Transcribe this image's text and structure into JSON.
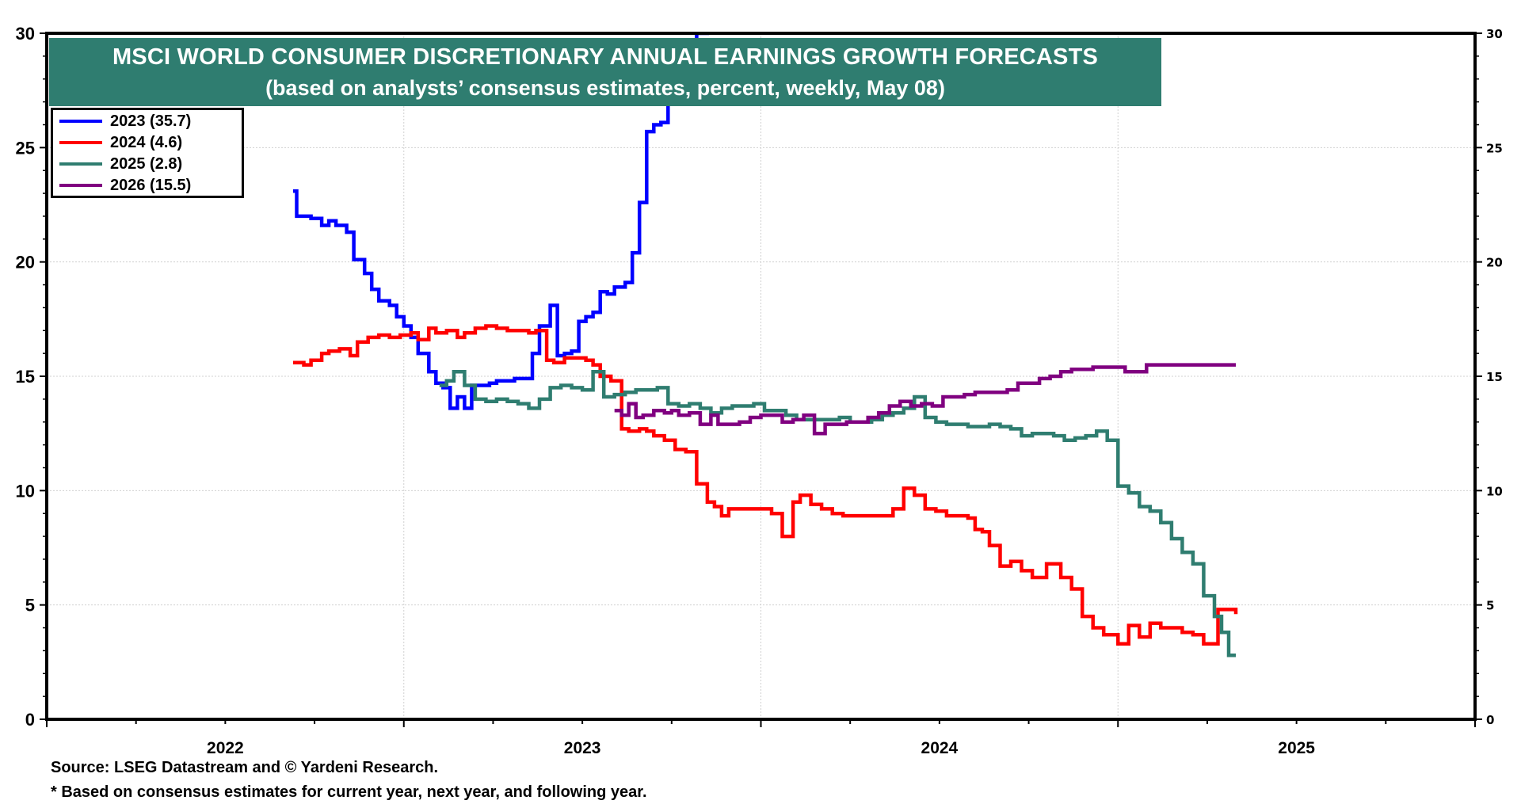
{
  "chart_data": {
    "type": "line",
    "title": "MSCI WORLD CONSUMER DISCRETIONARY ANNUAL EARNINGS GROWTH FORECASTS",
    "subtitle": "(based on analysts’ consensus estimates, percent, weekly, May 08)",
    "xlabel": "",
    "ylabel": "",
    "xlim": [
      2022.0,
      2026.0
    ],
    "ylim": [
      0,
      30
    ],
    "x_tick_labels": [
      "2022",
      "2023",
      "2024",
      "2025"
    ],
    "y_ticks_left": [
      "0",
      "5",
      "10",
      "15",
      "20",
      "25",
      "30"
    ],
    "y_ticks_right": [
      "0",
      "5",
      "10",
      "15",
      "20",
      "25",
      "30"
    ],
    "grid": true,
    "legend_position": "top-left",
    "series": [
      {
        "name": "2023 (35.7)",
        "color": "#0000ff",
        "step": true,
        "x": [
          2022.69,
          2022.7,
          2022.74,
          2022.77,
          2022.79,
          2022.81,
          2022.84,
          2022.86,
          2022.89,
          2022.91,
          2022.93,
          2022.96,
          2022.98,
          2023.0,
          2023.02,
          2023.04,
          2023.07,
          2023.09,
          2023.11,
          2023.13,
          2023.15,
          2023.17,
          2023.19,
          2023.22,
          2023.24,
          2023.26,
          2023.29,
          2023.31,
          2023.33,
          2023.36,
          2023.38,
          2023.41,
          2023.43,
          2023.45,
          2023.47,
          2023.49,
          2023.51,
          2023.53,
          2023.55,
          2023.57,
          2023.59,
          2023.62,
          2023.64,
          2023.66,
          2023.68,
          2023.7,
          2023.72,
          2023.74,
          2023.76,
          2023.78,
          2023.8,
          2023.82,
          2023.85
        ],
        "values": [
          23.1,
          22.0,
          21.9,
          21.6,
          21.8,
          21.6,
          21.3,
          20.1,
          19.5,
          18.8,
          18.3,
          18.1,
          17.6,
          17.2,
          16.7,
          16.0,
          15.2,
          14.7,
          14.5,
          13.6,
          14.1,
          13.6,
          14.6,
          14.6,
          14.7,
          14.8,
          14.8,
          14.9,
          14.9,
          16.0,
          17.2,
          18.1,
          15.9,
          16.0,
          16.1,
          17.4,
          17.6,
          17.8,
          18.7,
          18.6,
          18.9,
          19.1,
          20.4,
          22.6,
          25.7,
          26.0,
          26.1,
          27.3,
          28.4,
          29.3,
          29.7,
          30.0,
          35.7
        ]
      },
      {
        "name": "2024 (4.6)",
        "color": "#ff0000",
        "step": true,
        "x": [
          2022.69,
          2022.72,
          2022.74,
          2022.77,
          2022.79,
          2022.82,
          2022.85,
          2022.87,
          2022.9,
          2022.93,
          2022.96,
          2022.99,
          2023.02,
          2023.04,
          2023.07,
          2023.09,
          2023.12,
          2023.15,
          2023.17,
          2023.2,
          2023.23,
          2023.26,
          2023.29,
          2023.32,
          2023.35,
          2023.37,
          2023.4,
          2023.42,
          2023.45,
          2023.48,
          2023.51,
          2023.53,
          2023.55,
          2023.58,
          2023.61,
          2023.63,
          2023.66,
          2023.68,
          2023.7,
          2023.73,
          2023.76,
          2023.79,
          2023.82,
          2023.85,
          2023.87,
          2023.89,
          2023.91,
          2023.94,
          2023.97,
          2024.0,
          2024.03,
          2024.06,
          2024.09,
          2024.11,
          2024.14,
          2024.17,
          2024.2,
          2024.23,
          2024.25,
          2024.28,
          2024.31,
          2024.34,
          2024.37,
          2024.4,
          2024.43,
          2024.46,
          2024.49,
          2024.52,
          2024.55,
          2024.58,
          2024.6,
          2024.62,
          2024.64,
          2024.67,
          2024.7,
          2024.73,
          2024.76,
          2024.8,
          2024.84,
          2024.87,
          2024.9,
          2024.93,
          2024.96,
          2025.0,
          2025.03,
          2025.06,
          2025.09,
          2025.12,
          2025.15,
          2025.18,
          2025.21,
          2025.24,
          2025.28,
          2025.3,
          2025.33
        ],
        "values": [
          15.6,
          15.5,
          15.7,
          16.0,
          16.1,
          16.2,
          15.9,
          16.5,
          16.7,
          16.8,
          16.7,
          16.8,
          16.9,
          16.6,
          17.1,
          16.9,
          17.0,
          16.7,
          16.9,
          17.1,
          17.2,
          17.1,
          17.0,
          17.0,
          16.9,
          17.0,
          15.7,
          15.6,
          15.8,
          15.8,
          15.7,
          15.5,
          15.0,
          14.8,
          12.7,
          12.6,
          12.7,
          12.6,
          12.4,
          12.2,
          11.8,
          11.7,
          10.3,
          9.5,
          9.3,
          8.9,
          9.2,
          9.2,
          9.2,
          9.2,
          9.0,
          8.0,
          9.5,
          9.8,
          9.4,
          9.2,
          9.0,
          8.9,
          8.9,
          8.9,
          8.9,
          8.9,
          9.2,
          10.1,
          9.8,
          9.2,
          9.1,
          8.9,
          8.9,
          8.8,
          8.3,
          8.2,
          7.6,
          6.7,
          6.9,
          6.5,
          6.2,
          6.8,
          6.2,
          5.7,
          4.5,
          4.0,
          3.7,
          3.3,
          4.1,
          3.6,
          4.2,
          4.0,
          4.0,
          3.8,
          3.7,
          3.3,
          4.8,
          4.8,
          4.6
        ]
      },
      {
        "name": "2025 (2.8)",
        "color": "#2f7d70",
        "step": true,
        "x": [
          2023.1,
          2023.12,
          2023.14,
          2023.17,
          2023.2,
          2023.23,
          2023.26,
          2023.29,
          2023.32,
          2023.35,
          2023.38,
          2023.41,
          2023.44,
          2023.47,
          2023.5,
          2023.53,
          2023.56,
          2023.59,
          2023.62,
          2023.65,
          2023.68,
          2023.71,
          2023.74,
          2023.77,
          2023.8,
          2023.83,
          2023.86,
          2023.89,
          2023.92,
          2023.95,
          2023.98,
          2024.01,
          2024.04,
          2024.07,
          2024.1,
          2024.13,
          2024.16,
          2024.19,
          2024.22,
          2024.25,
          2024.28,
          2024.31,
          2024.34,
          2024.37,
          2024.4,
          2024.43,
          2024.46,
          2024.49,
          2024.52,
          2024.55,
          2024.58,
          2024.61,
          2024.64,
          2024.67,
          2024.7,
          2024.73,
          2024.76,
          2024.79,
          2024.82,
          2024.85,
          2024.88,
          2024.91,
          2024.94,
          2024.97,
          2025.0,
          2025.03,
          2025.06,
          2025.09,
          2025.12,
          2025.15,
          2025.18,
          2025.21,
          2025.24,
          2025.27,
          2025.29,
          2025.31,
          2025.33
        ],
        "values": [
          14.6,
          14.8,
          15.2,
          14.6,
          14.0,
          13.9,
          14.0,
          13.9,
          13.8,
          13.6,
          14.0,
          14.5,
          14.6,
          14.5,
          14.4,
          15.2,
          14.1,
          14.2,
          14.3,
          14.4,
          14.4,
          14.5,
          13.8,
          13.7,
          13.8,
          13.6,
          13.4,
          13.6,
          13.7,
          13.7,
          13.8,
          13.5,
          13.5,
          13.3,
          13.1,
          13.1,
          13.1,
          13.1,
          13.2,
          13.0,
          13.0,
          13.1,
          13.3,
          13.4,
          13.6,
          14.1,
          13.2,
          13.0,
          12.9,
          12.9,
          12.8,
          12.8,
          12.9,
          12.8,
          12.7,
          12.4,
          12.5,
          12.5,
          12.4,
          12.2,
          12.3,
          12.4,
          12.6,
          12.2,
          10.2,
          9.9,
          9.3,
          9.1,
          8.6,
          7.9,
          7.3,
          6.8,
          5.4,
          4.5,
          3.8,
          2.8,
          2.8
        ]
      },
      {
        "name": "2026 (15.5)",
        "color": "#800080",
        "step": true,
        "x": [
          2023.59,
          2023.61,
          2023.63,
          2023.65,
          2023.67,
          2023.7,
          2023.73,
          2023.75,
          2023.77,
          2023.8,
          2023.83,
          2023.86,
          2023.88,
          2023.91,
          2023.94,
          2023.97,
          2024.0,
          2024.03,
          2024.06,
          2024.09,
          2024.12,
          2024.15,
          2024.18,
          2024.21,
          2024.24,
          2024.27,
          2024.3,
          2024.33,
          2024.36,
          2024.39,
          2024.42,
          2024.45,
          2024.48,
          2024.51,
          2024.54,
          2024.57,
          2024.6,
          2024.63,
          2024.66,
          2024.69,
          2024.72,
          2024.75,
          2024.78,
          2024.81,
          2024.84,
          2024.87,
          2024.9,
          2024.93,
          2024.96,
          2024.99,
          2025.02,
          2025.05,
          2025.08,
          2025.11,
          2025.14,
          2025.17,
          2025.2,
          2025.23,
          2025.26,
          2025.29,
          2025.33
        ],
        "values": [
          13.5,
          13.3,
          13.8,
          13.2,
          13.3,
          13.5,
          13.4,
          13.5,
          13.3,
          13.4,
          12.9,
          13.3,
          12.9,
          12.9,
          13.0,
          13.2,
          13.3,
          13.3,
          13.0,
          13.1,
          13.3,
          12.5,
          12.9,
          12.9,
          13.0,
          13.0,
          13.2,
          13.4,
          13.7,
          13.9,
          13.7,
          13.8,
          13.7,
          14.1,
          14.1,
          14.2,
          14.3,
          14.3,
          14.3,
          14.4,
          14.7,
          14.7,
          14.9,
          15.0,
          15.2,
          15.3,
          15.3,
          15.4,
          15.4,
          15.4,
          15.2,
          15.2,
          15.5,
          15.5,
          15.5,
          15.5,
          15.5,
          15.5,
          15.5,
          15.5,
          15.5
        ]
      }
    ],
    "footer": [
      "Source: LSEG Datastream and © Yardeni Research.",
      "* Based on consensus estimates for current year, next year, and following year."
    ]
  },
  "title": {
    "line1": "MSCI WORLD CONSUMER DISCRETIONARY ANNUAL EARNINGS GROWTH FORECASTS",
    "line2": "(based on analysts’ consensus estimates, percent, weekly, May 08)"
  },
  "legend": {
    "items": [
      {
        "label": "2023 (35.7)",
        "color": "#0000ff"
      },
      {
        "label": "2024 (4.6)",
        "color": "#ff0000"
      },
      {
        "label": "2025 (2.8)",
        "color": "#2f7d70"
      },
      {
        "label": "2026 (15.5)",
        "color": "#800080"
      }
    ]
  },
  "footer": {
    "source": "Source: LSEG Datastream and © Yardeni Research.",
    "note": "* Based on consensus estimates for current year, next year, and following year."
  }
}
